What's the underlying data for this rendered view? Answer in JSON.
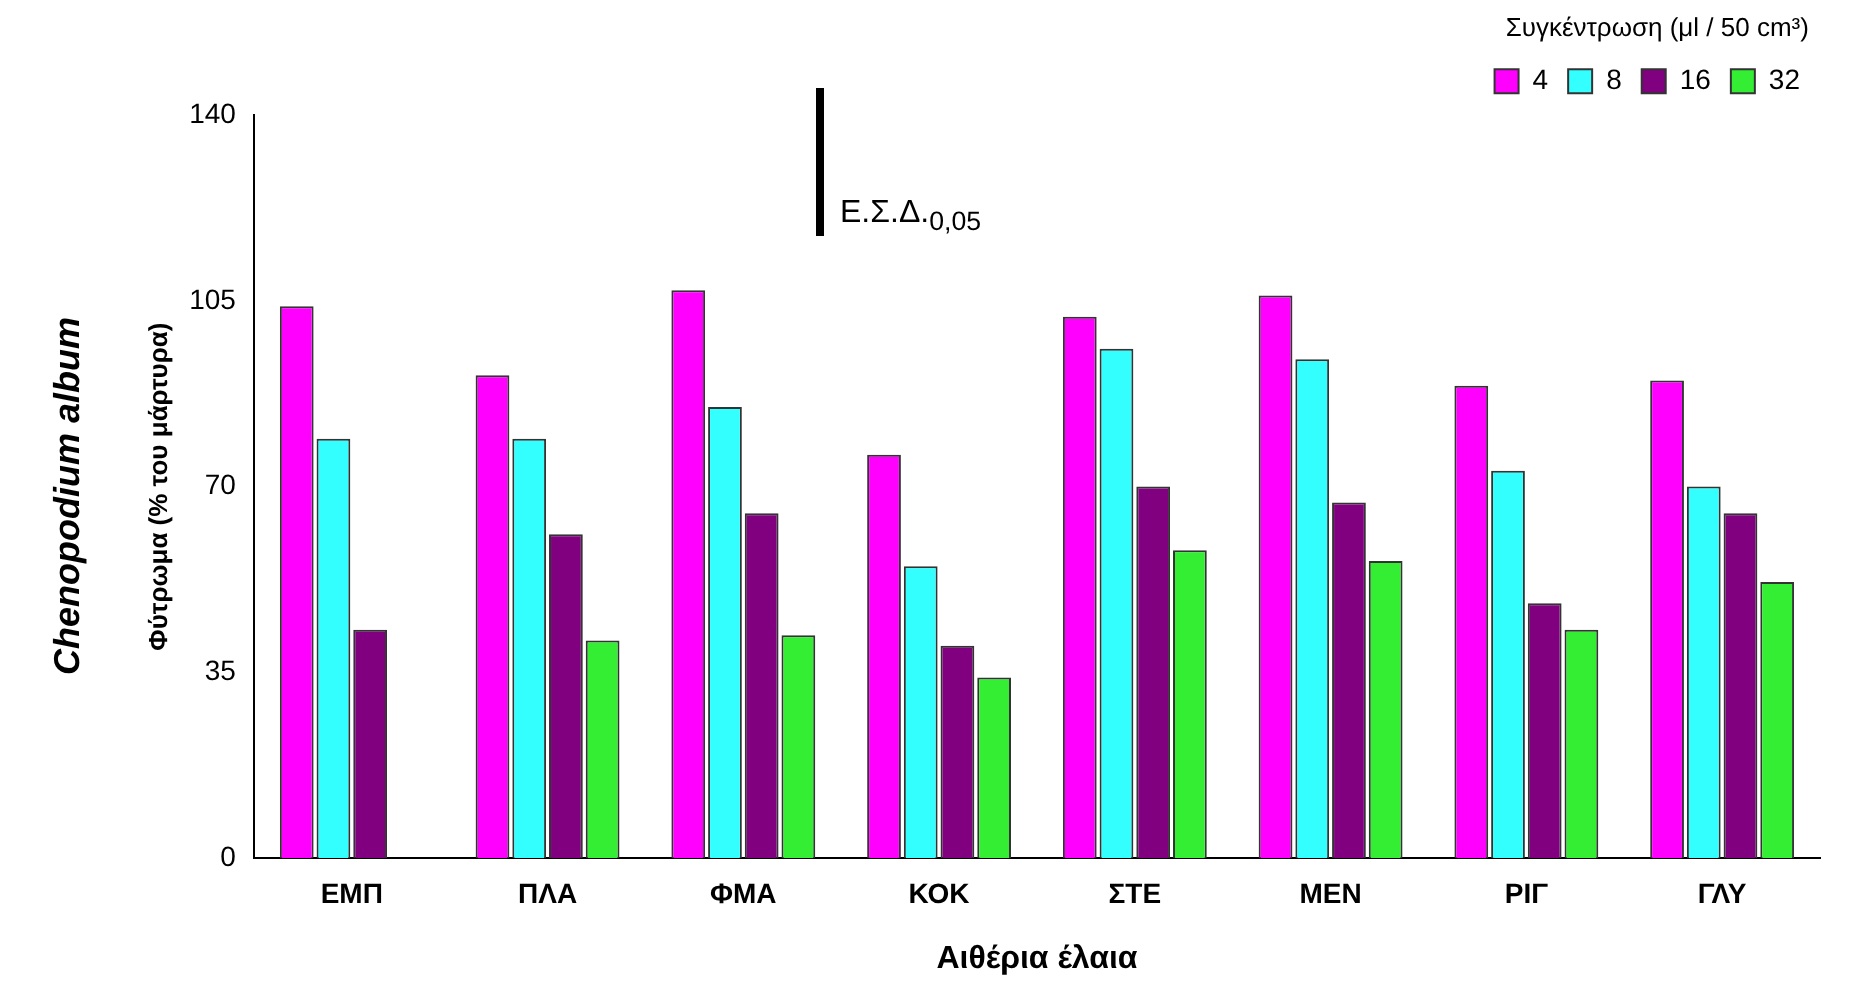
{
  "chart_data": {
    "type": "bar",
    "xlabel": "Αιθέρια έλαια",
    "ylabel": "Φύτρωμα (% του μάρτυρα)",
    "legend_title": "Συγκέντρωση (μl / 50 cm³)",
    "legend": "top right",
    "grid": false,
    "annotations": [
      "Chenopodium album",
      "Ε.Σ.Δ.$_{0,05}$"
    ],
    "categories": [
      "ΕΜΠ",
      "ΠΛΑ",
      "ΦΜΑ",
      "ΚΟΚ",
      "ΣΤΕ",
      "ΜΕΝ",
      "ΡΙΓ",
      "ΓΛΥ"
    ],
    "ylim": [
      0,
      140
    ],
    "yticks": [
      0,
      35,
      70,
      105,
      140
    ],
    "series": [
      {
        "name": "4",
        "color": "#ff00ff",
        "values": [
          104,
          91,
          107,
          76,
          102,
          106,
          89,
          90
        ]
      },
      {
        "name": "8",
        "color": "#33ffff",
        "values": [
          79,
          79,
          85,
          55,
          96,
          94,
          73,
          70
        ]
      },
      {
        "name": "16",
        "color": "#800080",
        "values": [
          43,
          61,
          65,
          40,
          70,
          67,
          48,
          65
        ]
      },
      {
        "name": "32",
        "color": "#33ee33",
        "values": [
          0,
          41,
          42,
          34,
          58,
          56,
          43,
          52
        ]
      }
    ]
  }
}
